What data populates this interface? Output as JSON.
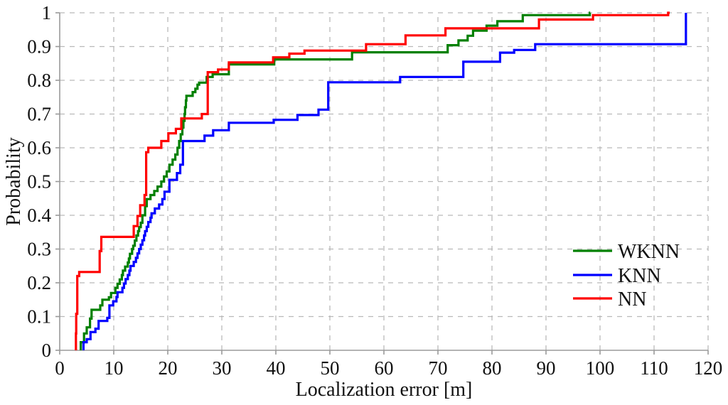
{
  "figure": {
    "background": "#ffffff"
  },
  "chart_data": {
    "type": "line",
    "subtype": "empirical-cdf-step",
    "title": "",
    "xlabel": "Localization error [m]",
    "ylabel": "Probability",
    "xlim": [
      0,
      120
    ],
    "ylim": [
      0,
      1
    ],
    "x_ticks": [
      0,
      10,
      20,
      30,
      40,
      50,
      60,
      70,
      80,
      90,
      100,
      110,
      120
    ],
    "y_ticks": [
      0,
      0.1,
      0.2,
      0.3,
      0.4,
      0.5,
      0.6,
      0.7,
      0.8,
      0.9,
      1
    ],
    "y_tick_labels": [
      "0",
      "0.1",
      "0.2",
      "0.3",
      "0.4",
      "0.5",
      "0.6",
      "0.7",
      "0.8",
      "0.9",
      "1"
    ],
    "grid": "dashed",
    "grid_color": "#b9b9b9",
    "axis_color": "#9a9a9a",
    "tick_color": "#9a9a9a",
    "legend": {
      "position": "right-center",
      "entries": [
        "WKNN",
        "KNN",
        "NN"
      ]
    },
    "series": [
      {
        "name": "WKNN",
        "color": "#008000",
        "end_x": 98.2,
        "points": [
          [
            3.9,
            0.024
          ],
          [
            4.5,
            0.05
          ],
          [
            5.0,
            0.068
          ],
          [
            5.6,
            0.094
          ],
          [
            5.9,
            0.12
          ],
          [
            7.5,
            0.133
          ],
          [
            7.9,
            0.15
          ],
          [
            9.1,
            0.157
          ],
          [
            9.5,
            0.17
          ],
          [
            10.3,
            0.185
          ],
          [
            10.7,
            0.197
          ],
          [
            11.1,
            0.21
          ],
          [
            11.5,
            0.223
          ],
          [
            11.7,
            0.236
          ],
          [
            12.1,
            0.248
          ],
          [
            12.6,
            0.26
          ],
          [
            12.8,
            0.272
          ],
          [
            13.0,
            0.286
          ],
          [
            13.4,
            0.3
          ],
          [
            13.6,
            0.31
          ],
          [
            13.9,
            0.325
          ],
          [
            14.2,
            0.34
          ],
          [
            14.5,
            0.353
          ],
          [
            14.7,
            0.365
          ],
          [
            15.0,
            0.378
          ],
          [
            15.3,
            0.4
          ],
          [
            15.8,
            0.427
          ],
          [
            16.1,
            0.448
          ],
          [
            16.8,
            0.46
          ],
          [
            17.5,
            0.472
          ],
          [
            18.1,
            0.485
          ],
          [
            18.8,
            0.5
          ],
          [
            19.3,
            0.515
          ],
          [
            19.8,
            0.53
          ],
          [
            20.3,
            0.55
          ],
          [
            20.9,
            0.565
          ],
          [
            21.4,
            0.58
          ],
          [
            21.8,
            0.6
          ],
          [
            22.1,
            0.62
          ],
          [
            22.4,
            0.64
          ],
          [
            22.7,
            0.66
          ],
          [
            22.9,
            0.68
          ],
          [
            23.1,
            0.7
          ],
          [
            23.2,
            0.72
          ],
          [
            23.35,
            0.74
          ],
          [
            23.45,
            0.754
          ],
          [
            24.6,
            0.765
          ],
          [
            25.1,
            0.775
          ],
          [
            25.5,
            0.787
          ],
          [
            25.8,
            0.793
          ],
          [
            27.2,
            0.81
          ],
          [
            28.3,
            0.818
          ],
          [
            31.3,
            0.847
          ],
          [
            39.7,
            0.862
          ],
          [
            54.1,
            0.883
          ],
          [
            71.8,
            0.904
          ],
          [
            73.8,
            0.918
          ],
          [
            75.5,
            0.932
          ],
          [
            76.5,
            0.947
          ],
          [
            79.0,
            0.962
          ],
          [
            81.0,
            0.975
          ],
          [
            85.7,
            0.993
          ],
          [
            98.1,
            1.0
          ]
        ]
      },
      {
        "name": "KNN",
        "color": "#0000ff",
        "end_x": 115.9,
        "points": [
          [
            4.4,
            0.024
          ],
          [
            5.0,
            0.033
          ],
          [
            5.7,
            0.054
          ],
          [
            6.6,
            0.064
          ],
          [
            7.2,
            0.087
          ],
          [
            8.8,
            0.096
          ],
          [
            9.2,
            0.133
          ],
          [
            9.9,
            0.145
          ],
          [
            10.5,
            0.158
          ],
          [
            10.7,
            0.172
          ],
          [
            11.6,
            0.185
          ],
          [
            11.9,
            0.198
          ],
          [
            12.2,
            0.211
          ],
          [
            12.6,
            0.223
          ],
          [
            12.9,
            0.236
          ],
          [
            13.1,
            0.25
          ],
          [
            13.7,
            0.262
          ],
          [
            14.1,
            0.274
          ],
          [
            14.4,
            0.287
          ],
          [
            14.7,
            0.3
          ],
          [
            15.0,
            0.313
          ],
          [
            15.3,
            0.326
          ],
          [
            15.6,
            0.34
          ],
          [
            15.8,
            0.353
          ],
          [
            16.1,
            0.366
          ],
          [
            16.4,
            0.38
          ],
          [
            16.8,
            0.393
          ],
          [
            17.0,
            0.406
          ],
          [
            17.6,
            0.42
          ],
          [
            18.4,
            0.432
          ],
          [
            19.0,
            0.448
          ],
          [
            19.4,
            0.47
          ],
          [
            20.3,
            0.505
          ],
          [
            21.7,
            0.525
          ],
          [
            22.3,
            0.55
          ],
          [
            22.8,
            0.62
          ],
          [
            26.8,
            0.636
          ],
          [
            28.4,
            0.652
          ],
          [
            31.3,
            0.674
          ],
          [
            39.6,
            0.683
          ],
          [
            44.0,
            0.697
          ],
          [
            47.9,
            0.713
          ],
          [
            49.7,
            0.794
          ],
          [
            63.0,
            0.81
          ],
          [
            74.7,
            0.855
          ],
          [
            81.5,
            0.882
          ],
          [
            84.1,
            0.89
          ],
          [
            88.0,
            0.907
          ],
          [
            115.9,
            1.0
          ]
        ]
      },
      {
        "name": "NN",
        "color": "#ff0000",
        "end_x": 112.9,
        "points": [
          [
            3.0,
            0.05
          ],
          [
            3.05,
            0.108
          ],
          [
            3.25,
            0.22
          ],
          [
            3.6,
            0.232
          ],
          [
            7.4,
            0.294
          ],
          [
            7.7,
            0.336
          ],
          [
            13.7,
            0.368
          ],
          [
            14.4,
            0.398
          ],
          [
            14.9,
            0.43
          ],
          [
            15.7,
            0.46
          ],
          [
            16.0,
            0.587
          ],
          [
            16.4,
            0.6
          ],
          [
            18.8,
            0.62
          ],
          [
            20.1,
            0.643
          ],
          [
            21.5,
            0.656
          ],
          [
            22.5,
            0.687
          ],
          [
            26.3,
            0.7
          ],
          [
            27.4,
            0.824
          ],
          [
            29.3,
            0.832
          ],
          [
            31.3,
            0.853
          ],
          [
            39.5,
            0.868
          ],
          [
            42.5,
            0.879
          ],
          [
            45.3,
            0.888
          ],
          [
            56.7,
            0.907
          ],
          [
            64.0,
            0.933
          ],
          [
            71.4,
            0.954
          ],
          [
            88.7,
            0.98
          ],
          [
            98.7,
            0.993
          ],
          [
            112.6,
            1.0
          ]
        ]
      }
    ]
  }
}
